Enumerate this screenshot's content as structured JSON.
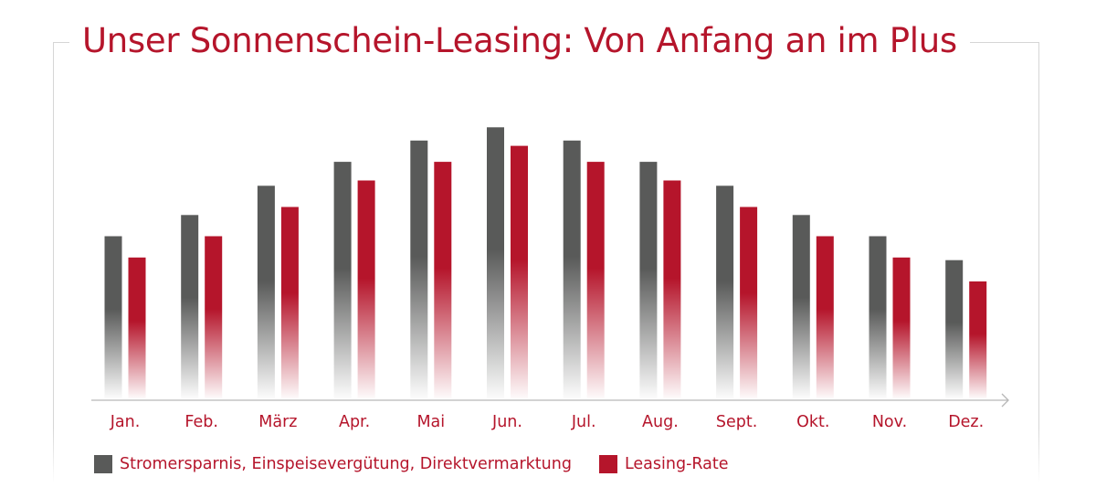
{
  "title": "Unser Sonnenschein-Leasing: Von Anfang an im Plus",
  "colors": {
    "accent": "#b5152b",
    "series_dark": "#595a59",
    "series_red": "#b5152b",
    "axis": "#b7b7b7"
  },
  "chart_data": {
    "type": "bar",
    "categories": [
      "Jan.",
      "Feb.",
      "März",
      "Apr.",
      "Mai",
      "Jun.",
      "Jul.",
      "Aug.",
      "Sept.",
      "Okt.",
      "Nov.",
      "Dez."
    ],
    "series": [
      {
        "name": "Stromersparnis, Einspeisevergütung, Direktvermarktung",
        "color": "#595a59",
        "values": [
          61,
          69,
          80,
          89,
          97,
          102,
          97,
          89,
          80,
          69,
          61,
          52
        ]
      },
      {
        "name": "Leasing-Rate",
        "color": "#b5152b",
        "values": [
          53,
          61,
          72,
          82,
          89,
          95,
          89,
          82,
          72,
          61,
          53,
          44
        ]
      }
    ],
    "ylim": [
      0,
      110
    ],
    "y_axis_visible": false,
    "grid": false,
    "legend_position": "bottom-left"
  },
  "legend": [
    {
      "label": "Stromersparnis, Einspeisevergütung, Direktvermarktung"
    },
    {
      "label": "Leasing-Rate"
    }
  ]
}
